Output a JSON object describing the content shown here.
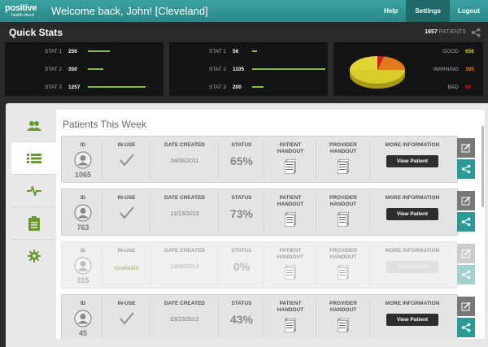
{
  "header": {
    "logo_main": "positive",
    "logo_sub": "health check",
    "welcome": "Welcome back, John! [Cleveland]",
    "nav": [
      "Help",
      "Settings",
      "Logout"
    ]
  },
  "quick_stats": {
    "title": "Quick Stats",
    "patient_count": "1657",
    "patient_label": "PATIENTS",
    "panels": [
      {
        "stats": [
          {
            "label": "STAT 1",
            "value": "256",
            "level": 0.21
          },
          {
            "label": "STAT 2",
            "value": "350",
            "level": 0.15
          },
          {
            "label": "STAT 3",
            "value": "1257",
            "level": 0.55
          }
        ]
      },
      {
        "stats": [
          {
            "label": "STAT 1",
            "value": "56",
            "level": 0.05
          },
          {
            "label": "STAT 2",
            "value": "1105",
            "level": 0.7
          },
          {
            "label": "STAT 3",
            "value": "200",
            "level": 0.11
          }
        ]
      }
    ],
    "pie": {
      "items": [
        {
          "label": "GOOD",
          "value": "656",
          "color": "#d8cc2a"
        },
        {
          "label": "WARNING",
          "value": "305",
          "color": "#e07a1a"
        },
        {
          "label": "BAD",
          "value": "60",
          "color": "#d01e1e"
        }
      ]
    }
  },
  "patients": {
    "title": "Patients This Week",
    "headers": {
      "id": "ID",
      "in_use": "IN-USE",
      "date": "DATE CREATED",
      "status": "STATUS",
      "patient_handout": "PATIENT HANDOUT",
      "provider_handout": "PROVIDER HANDOUT",
      "more": "MORE INFORMATION"
    },
    "view_label": "View Patient",
    "rows": [
      {
        "id": "1065",
        "in_use": "check",
        "date": "04/06/2011",
        "status": "65%",
        "enabled": true
      },
      {
        "id": "763",
        "in_use": "check",
        "date": "11/13/2013",
        "status": "73%",
        "enabled": true
      },
      {
        "id": "315",
        "in_use": "Available",
        "date": "10/05/2013",
        "status": "0%",
        "enabled": false
      },
      {
        "id": "45",
        "in_use": "check",
        "date": "03/23/2012",
        "status": "43%",
        "enabled": true
      }
    ]
  },
  "sidebar": {
    "items": [
      "users-icon",
      "list-icon",
      "pulse-icon",
      "clipboard-icon",
      "gear-icon"
    ],
    "active": 1
  },
  "colors": {
    "accent": "#2a9a96",
    "bar": "#7fc241"
  }
}
